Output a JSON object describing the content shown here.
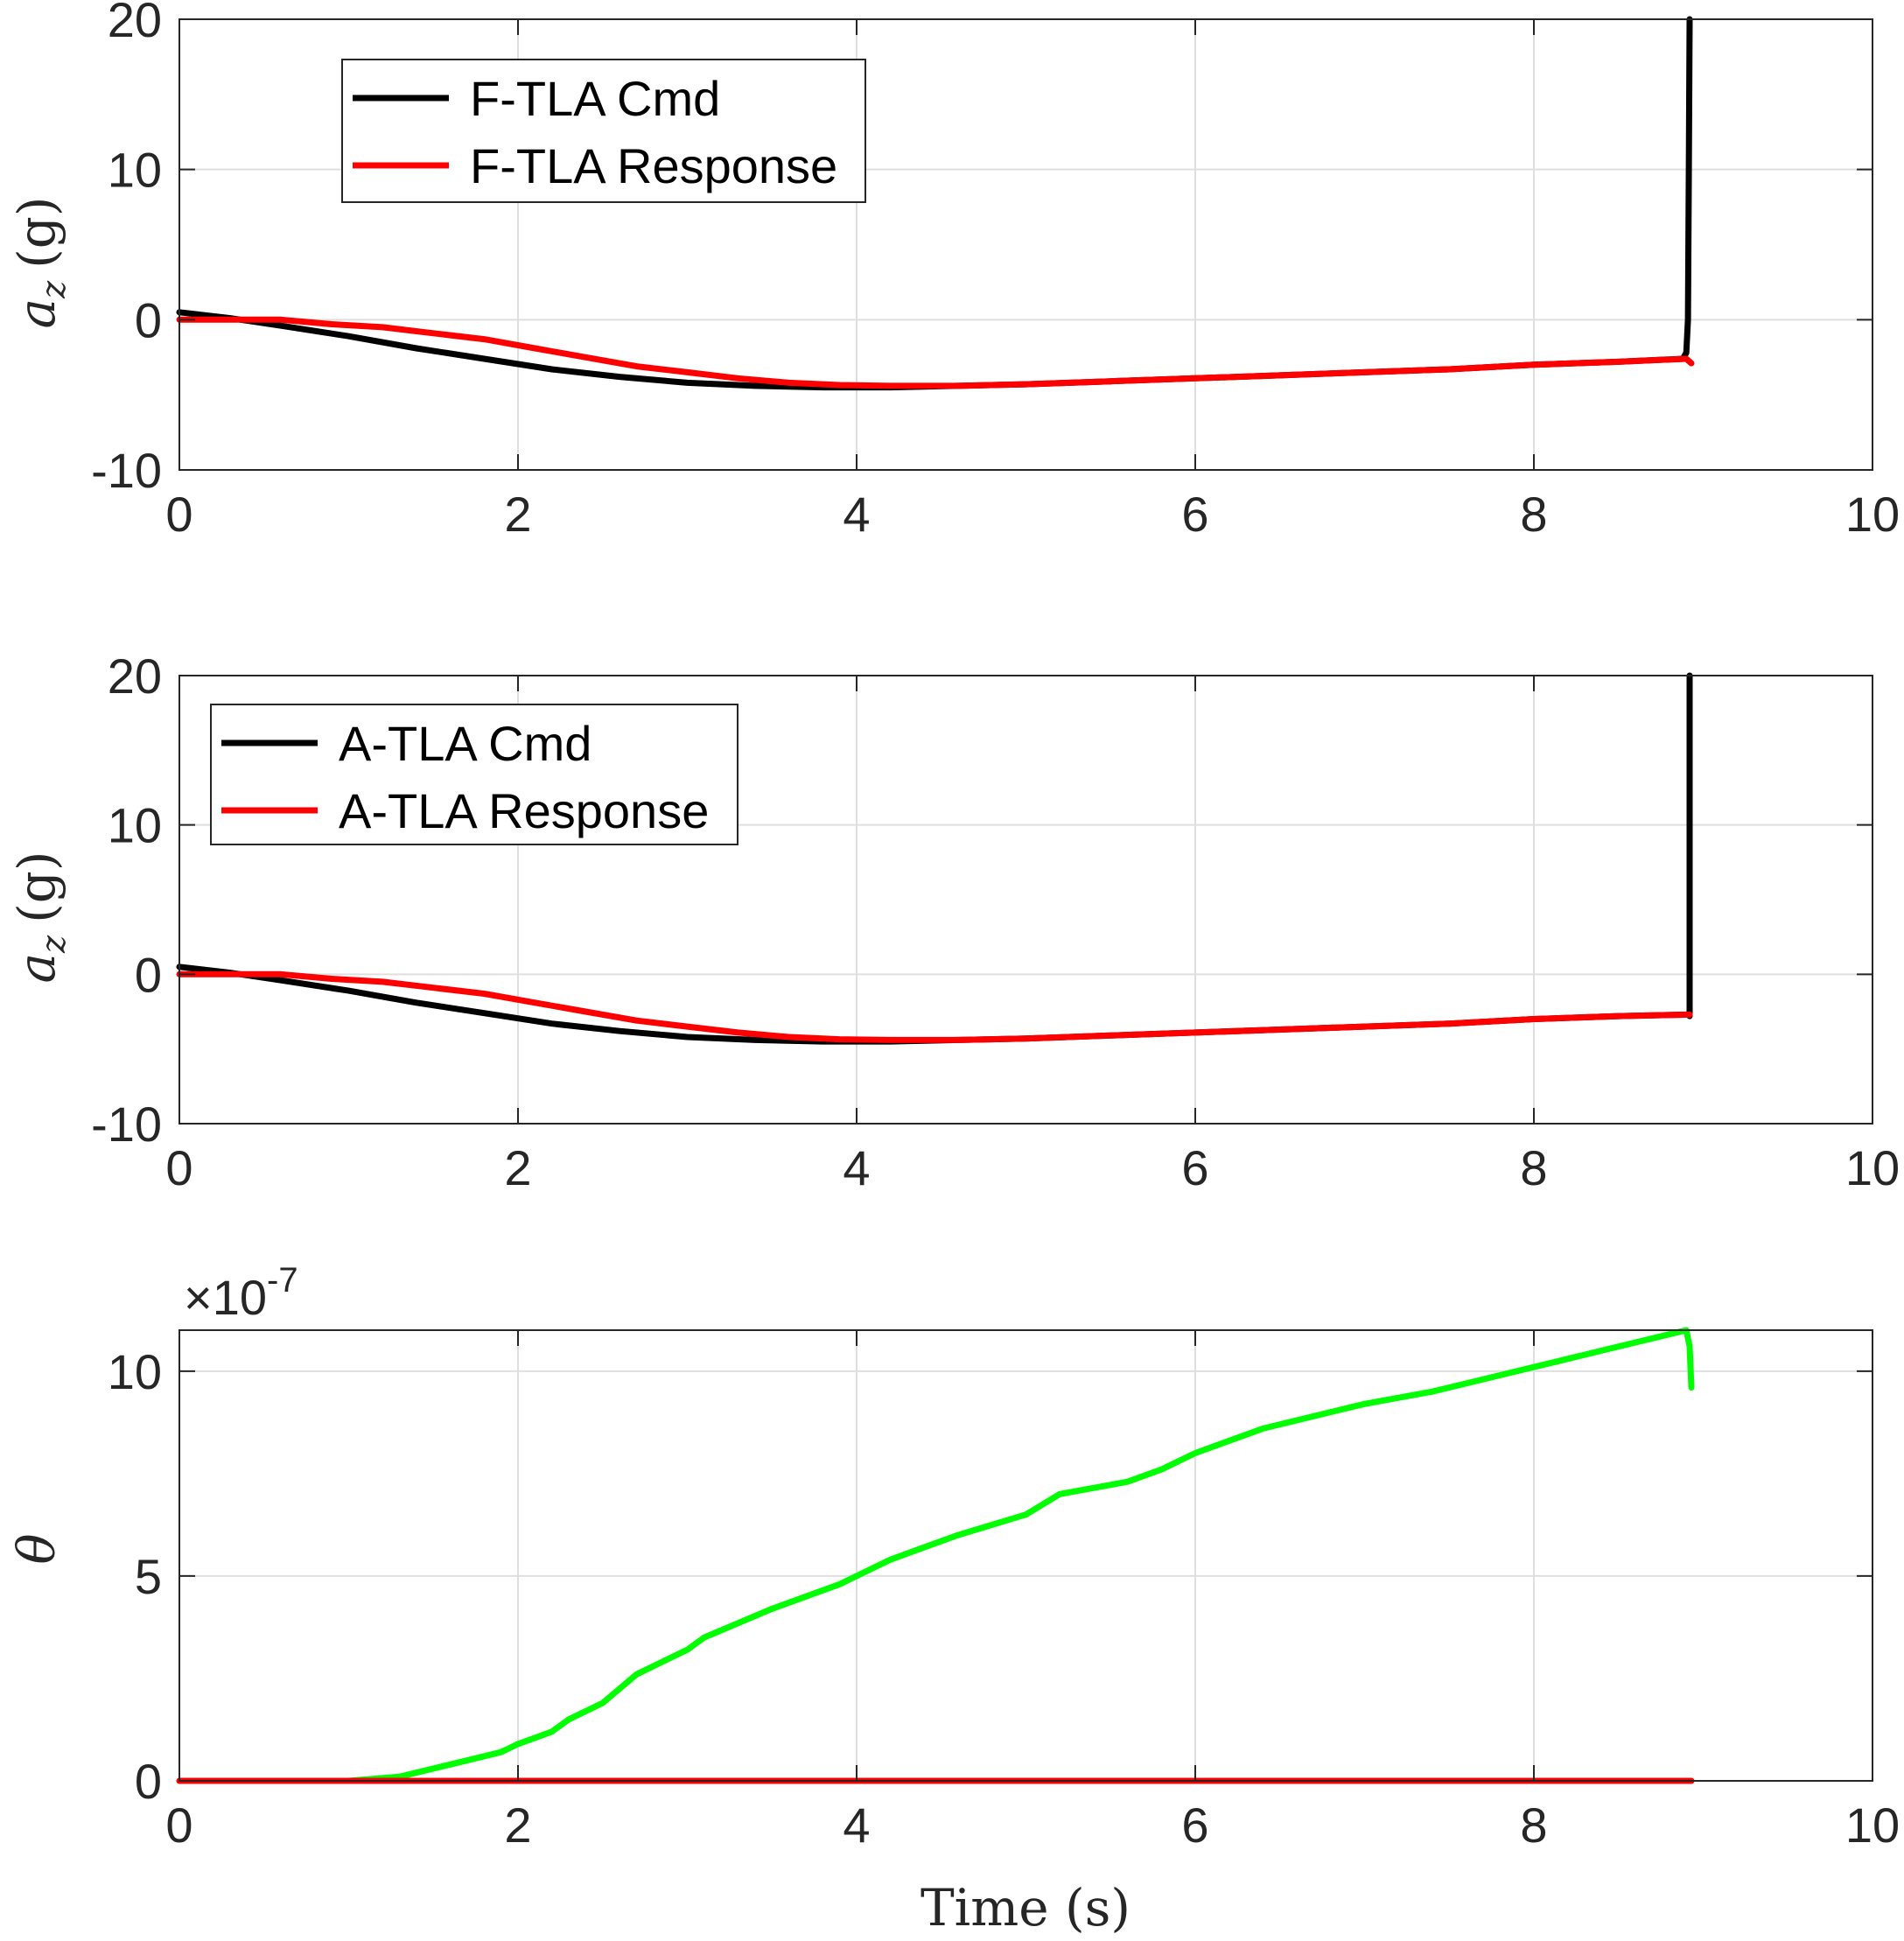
{
  "chart_data": [
    {
      "type": "line",
      "ylabel": "a_z (g)",
      "xlabel": "",
      "xlim": [
        0,
        10
      ],
      "ylim": [
        -10,
        20
      ],
      "xticks": [
        "0",
        "2",
        "4",
        "6",
        "8",
        "10"
      ],
      "yticks": [
        "-10",
        "0",
        "10",
        "20"
      ],
      "grid": true,
      "legend_position": "top-left",
      "series": [
        {
          "name": "F-TLA Cmd",
          "color": "#000000",
          "x": [
            0,
            0.3,
            0.6,
            1.0,
            1.4,
            1.8,
            2.2,
            2.6,
            3.0,
            3.4,
            3.8,
            4.2,
            4.6,
            5.0,
            5.5,
            6.0,
            6.5,
            7.0,
            7.5,
            8.0,
            8.5,
            8.88,
            8.9,
            8.91,
            8.915,
            8.92
          ],
          "y": [
            0.5,
            0.1,
            -0.4,
            -1.1,
            -1.9,
            -2.6,
            -3.3,
            -3.8,
            -4.2,
            -4.4,
            -4.5,
            -4.5,
            -4.4,
            -4.3,
            -4.1,
            -3.9,
            -3.7,
            -3.5,
            -3.3,
            -3.0,
            -2.8,
            -2.6,
            -2.2,
            0,
            10,
            20
          ]
        },
        {
          "name": "F-TLA Response",
          "color": "#ff0000",
          "x": [
            0,
            0.3,
            0.6,
            0.9,
            1.2,
            1.5,
            1.8,
            2.1,
            2.4,
            2.7,
            3.0,
            3.3,
            3.6,
            3.9,
            4.2,
            4.6,
            5.0,
            5.5,
            6.0,
            6.5,
            7.0,
            7.5,
            8.0,
            8.5,
            8.9,
            8.93
          ],
          "y": [
            0,
            0,
            0,
            -0.3,
            -0.5,
            -0.9,
            -1.3,
            -1.9,
            -2.5,
            -3.1,
            -3.5,
            -3.9,
            -4.2,
            -4.35,
            -4.4,
            -4.4,
            -4.3,
            -4.1,
            -3.9,
            -3.7,
            -3.5,
            -3.3,
            -3.0,
            -2.8,
            -2.6,
            -2.9
          ]
        }
      ]
    },
    {
      "type": "line",
      "ylabel": "a_z (g)",
      "xlabel": "",
      "xlim": [
        0,
        10
      ],
      "ylim": [
        -10,
        20
      ],
      "xticks": [
        "0",
        "2",
        "4",
        "6",
        "8",
        "10"
      ],
      "yticks": [
        "-10",
        "0",
        "10",
        "20"
      ],
      "grid": true,
      "legend_position": "top-left",
      "series": [
        {
          "name": "A-TLA Cmd",
          "color": "#000000",
          "x": [
            0,
            0.3,
            0.6,
            1.0,
            1.4,
            1.8,
            2.2,
            2.6,
            3.0,
            3.4,
            3.8,
            4.2,
            4.6,
            5.0,
            5.5,
            6.0,
            6.5,
            7.0,
            7.5,
            8.0,
            8.5,
            8.9,
            8.92,
            8.92,
            8.92
          ],
          "y": [
            0.5,
            0.1,
            -0.4,
            -1.1,
            -1.9,
            -2.6,
            -3.3,
            -3.8,
            -4.2,
            -4.4,
            -4.5,
            -4.5,
            -4.4,
            -4.3,
            -4.1,
            -3.9,
            -3.7,
            -3.5,
            -3.3,
            -3.0,
            -2.8,
            -2.7,
            -2.7,
            20,
            -2.8
          ]
        },
        {
          "name": "A-TLA Response",
          "color": "#ff0000",
          "x": [
            0,
            0.3,
            0.6,
            0.9,
            1.2,
            1.5,
            1.8,
            2.1,
            2.4,
            2.7,
            3.0,
            3.3,
            3.6,
            3.9,
            4.2,
            4.6,
            5.0,
            5.5,
            6.0,
            6.5,
            7.0,
            7.5,
            8.0,
            8.5,
            8.92
          ],
          "y": [
            0,
            0,
            0,
            -0.3,
            -0.5,
            -0.9,
            -1.3,
            -1.9,
            -2.5,
            -3.1,
            -3.5,
            -3.9,
            -4.2,
            -4.35,
            -4.4,
            -4.4,
            -4.3,
            -4.1,
            -3.9,
            -3.7,
            -3.5,
            -3.3,
            -3.0,
            -2.8,
            -2.7
          ]
        }
      ]
    },
    {
      "type": "line",
      "ylabel": "θ",
      "xlabel": "Time (s)",
      "xlim": [
        0,
        10
      ],
      "ylim": [
        0,
        11
      ],
      "y_multiplier": "×10-7",
      "xticks": [
        "0",
        "2",
        "4",
        "6",
        "8",
        "10"
      ],
      "yticks": [
        "0",
        "5",
        "10"
      ],
      "grid": true,
      "series": [
        {
          "color": "#00ff00",
          "x": [
            0,
            0.5,
            1.0,
            1.3,
            1.6,
            1.9,
            2.0,
            2.2,
            2.3,
            2.5,
            2.7,
            2.9,
            3.0,
            3.1,
            3.5,
            3.9,
            4.0,
            4.2,
            4.4,
            4.6,
            5.0,
            5.2,
            5.6,
            5.8,
            6.0,
            6.2,
            6.4,
            6.8,
            7.0,
            7.4,
            7.6,
            7.8,
            8.0,
            8.2,
            8.4,
            8.8,
            8.9,
            8.92,
            8.93
          ],
          "y": [
            0,
            0,
            0,
            0.1,
            0.4,
            0.7,
            0.9,
            1.2,
            1.5,
            1.9,
            2.6,
            3.0,
            3.2,
            3.5,
            4.2,
            4.8,
            5.0,
            5.4,
            5.7,
            6.0,
            6.5,
            7.0,
            7.3,
            7.6,
            8.0,
            8.3,
            8.6,
            9.0,
            9.2,
            9.5,
            9.7,
            9.9,
            10.1,
            10.3,
            10.5,
            10.9,
            11.0,
            10.6,
            9.6
          ]
        },
        {
          "color": "#ff0000",
          "x": [
            0,
            8.93
          ],
          "y": [
            0,
            0
          ]
        }
      ]
    }
  ],
  "labels": {
    "plot1": {
      "ylabel_var": "a",
      "ylabel_sub": "z",
      "ylabel_unit": "(g)"
    },
    "plot2": {
      "ylabel_var": "a",
      "ylabel_sub": "z",
      "ylabel_unit": "(g)"
    },
    "plot3": {
      "ylabel": "θ",
      "multiplier_base": "×10",
      "multiplier_exp": "-7",
      "xlabel": "Time (s)"
    }
  }
}
